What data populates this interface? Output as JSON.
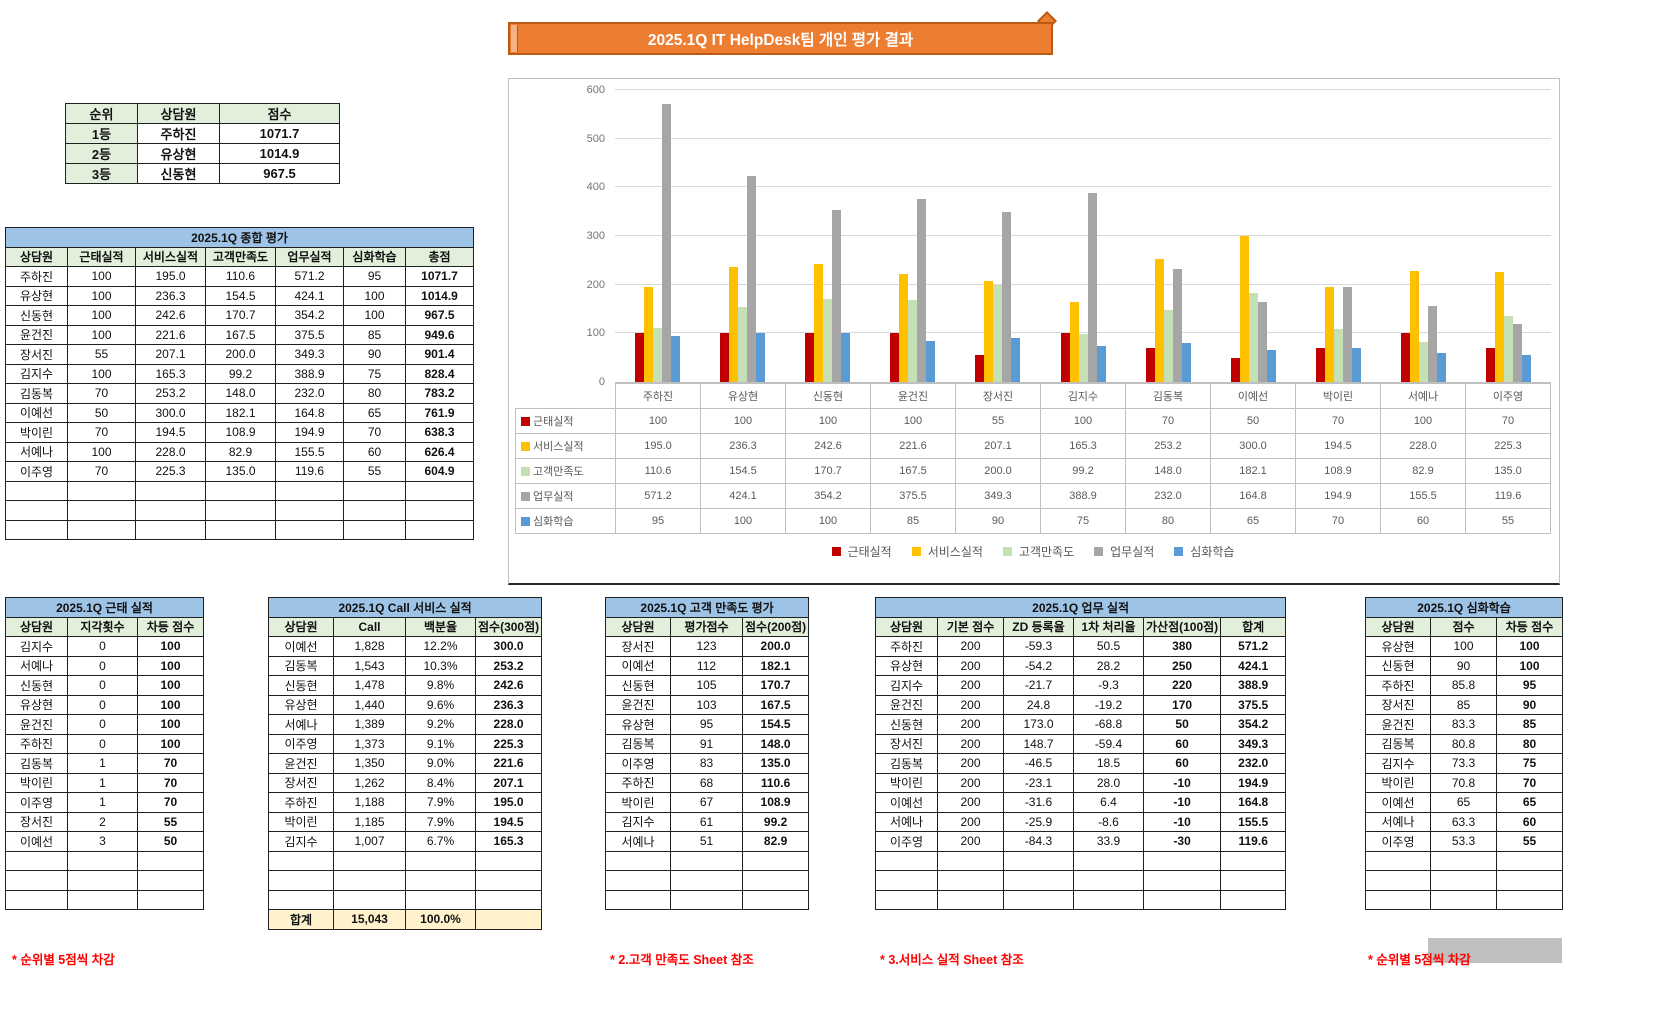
{
  "title_banner": "2025.1Q IT HelpDesk팀 개인 평가 결과",
  "rank_table": {
    "headers": [
      "순위",
      "상담원",
      "점수"
    ],
    "rows": [
      [
        "1등",
        "주하진",
        "1071.7"
      ],
      [
        "2등",
        "유상현",
        "1014.9"
      ],
      [
        "3등",
        "신동현",
        "967.5"
      ]
    ],
    "bold_all": true,
    "green_col": 0,
    "empty_rows": 0
  },
  "summary_table": {
    "title": "2025.1Q 종합 평가",
    "headers": [
      "상담원",
      "근태실적",
      "서비스실적",
      "고객만족도",
      "업무실적",
      "심화학습",
      "총점"
    ],
    "rows": [
      [
        "주하진",
        "100",
        "195.0",
        "110.6",
        "571.2",
        "95",
        "1071.7"
      ],
      [
        "유상현",
        "100",
        "236.3",
        "154.5",
        "424.1",
        "100",
        "1014.9"
      ],
      [
        "신동현",
        "100",
        "242.6",
        "170.7",
        "354.2",
        "100",
        "967.5"
      ],
      [
        "윤건진",
        "100",
        "221.6",
        "167.5",
        "375.5",
        "85",
        "949.6"
      ],
      [
        "장서진",
        "55",
        "207.1",
        "200.0",
        "349.3",
        "90",
        "901.4"
      ],
      [
        "김지수",
        "100",
        "165.3",
        "99.2",
        "388.9",
        "75",
        "828.4"
      ],
      [
        "김동복",
        "70",
        "253.2",
        "148.0",
        "232.0",
        "80",
        "783.2"
      ],
      [
        "이예선",
        "50",
        "300.0",
        "182.1",
        "164.8",
        "65",
        "761.9"
      ],
      [
        "박이린",
        "70",
        "194.5",
        "108.9",
        "194.9",
        "70",
        "638.3"
      ],
      [
        "서예나",
        "100",
        "228.0",
        "82.9",
        "155.5",
        "60",
        "626.4"
      ],
      [
        "이주영",
        "70",
        "225.3",
        "135.0",
        "119.6",
        "55",
        "604.9"
      ]
    ],
    "bold_cols": [
      6
    ],
    "empty_rows": 3
  },
  "chart_data": {
    "type": "bar",
    "title": "",
    "categories": [
      "주하진",
      "유상현",
      "신동현",
      "윤건진",
      "장서진",
      "김지수",
      "김동복",
      "이예선",
      "박이린",
      "서예나",
      "이주영"
    ],
    "series": [
      {
        "name": "근태실적",
        "color": "#C00000",
        "decimals": 0,
        "values": [
          100,
          100,
          100,
          100,
          55,
          100,
          70,
          50,
          70,
          100,
          70
        ]
      },
      {
        "name": "서비스실적",
        "color": "#FFC000",
        "decimals": 1,
        "values": [
          195.0,
          236.3,
          242.6,
          221.6,
          207.1,
          165.3,
          253.2,
          300.0,
          194.5,
          228.0,
          225.3
        ]
      },
      {
        "name": "고객만족도",
        "color": "#C5E0B4",
        "decimals": 1,
        "values": [
          110.6,
          154.5,
          170.7,
          167.5,
          200.0,
          99.2,
          148.0,
          182.1,
          108.9,
          82.9,
          135.0
        ]
      },
      {
        "name": "업무실적",
        "color": "#A6A6A6",
        "decimals": 1,
        "values": [
          571.2,
          424.1,
          354.2,
          375.5,
          349.3,
          388.9,
          232.0,
          164.8,
          194.9,
          155.5,
          119.6
        ]
      },
      {
        "name": "심화학습",
        "color": "#5B9BD5",
        "decimals": 0,
        "values": [
          95,
          100,
          100,
          85,
          90,
          75,
          80,
          65,
          70,
          60,
          55
        ]
      }
    ],
    "ylim": [
      0,
      600
    ],
    "yticks": [
      0,
      100,
      200,
      300,
      400,
      500,
      600
    ],
    "grid": true,
    "legend_position": "bottom",
    "data_table": true
  },
  "attendance_table": {
    "title": "2025.1Q 근태 실적",
    "headers": [
      "상담원",
      "지각횟수",
      "차등 점수"
    ],
    "rows": [
      [
        "김지수",
        "0",
        "100"
      ],
      [
        "서예나",
        "0",
        "100"
      ],
      [
        "신동현",
        "0",
        "100"
      ],
      [
        "유상현",
        "0",
        "100"
      ],
      [
        "윤건진",
        "0",
        "100"
      ],
      [
        "주하진",
        "0",
        "100"
      ],
      [
        "김동복",
        "1",
        "70"
      ],
      [
        "박이린",
        "1",
        "70"
      ],
      [
        "이주영",
        "1",
        "70"
      ],
      [
        "장서진",
        "2",
        "55"
      ],
      [
        "이예선",
        "3",
        "50"
      ]
    ],
    "bold_cols": [
      2
    ],
    "empty_rows": 3,
    "footnote": "* 순위별 5점씩 차감"
  },
  "call_table": {
    "title": "2025.1Q Call 서비스 실적",
    "headers": [
      "상담원",
      "Call",
      "백분율",
      "점수(300점)"
    ],
    "rows": [
      [
        "이예선",
        "1,828",
        "12.2%",
        "300.0"
      ],
      [
        "김동복",
        "1,543",
        "10.3%",
        "253.2"
      ],
      [
        "신동현",
        "1,478",
        "9.8%",
        "242.6"
      ],
      [
        "유상현",
        "1,440",
        "9.6%",
        "236.3"
      ],
      [
        "서예나",
        "1,389",
        "9.2%",
        "228.0"
      ],
      [
        "이주영",
        "1,373",
        "9.1%",
        "225.3"
      ],
      [
        "윤건진",
        "1,350",
        "9.0%",
        "221.6"
      ],
      [
        "장서진",
        "1,262",
        "8.4%",
        "207.1"
      ],
      [
        "주하진",
        "1,188",
        "7.9%",
        "195.0"
      ],
      [
        "박이린",
        "1,185",
        "7.9%",
        "194.5"
      ],
      [
        "김지수",
        "1,007",
        "6.7%",
        "165.3"
      ]
    ],
    "bold_cols": [
      3
    ],
    "empty_rows": 3,
    "total_row": [
      "합계",
      "15,043",
      "100.0%",
      ""
    ]
  },
  "csat_table": {
    "title": "2025.1Q 고객 만족도 평가",
    "headers": [
      "상담원",
      "평가점수",
      "점수(200점)"
    ],
    "rows": [
      [
        "장서진",
        "123",
        "200.0"
      ],
      [
        "이예선",
        "112",
        "182.1"
      ],
      [
        "신동현",
        "105",
        "170.7"
      ],
      [
        "윤건진",
        "103",
        "167.5"
      ],
      [
        "유상현",
        "95",
        "154.5"
      ],
      [
        "김동복",
        "91",
        "148.0"
      ],
      [
        "이주영",
        "83",
        "135.0"
      ],
      [
        "주하진",
        "68",
        "110.6"
      ],
      [
        "박이린",
        "67",
        "108.9"
      ],
      [
        "김지수",
        "61",
        "99.2"
      ],
      [
        "서예나",
        "51",
        "82.9"
      ]
    ],
    "bold_cols": [
      2
    ],
    "empty_rows": 3,
    "footnote": "* 2.고객 만족도 Sheet 참조"
  },
  "work_table": {
    "title": "2025.1Q 업무 실적",
    "headers": [
      "상담원",
      "기본 점수",
      "ZD 등록율",
      "1차 처리율",
      "가산점(100점)",
      "합계"
    ],
    "rows": [
      [
        "주하진",
        "200",
        "-59.3",
        "50.5",
        "380",
        "571.2"
      ],
      [
        "유상현",
        "200",
        "-54.2",
        "28.2",
        "250",
        "424.1"
      ],
      [
        "김지수",
        "200",
        "-21.7",
        "-9.3",
        "220",
        "388.9"
      ],
      [
        "윤건진",
        "200",
        "24.8",
        "-19.2",
        "170",
        "375.5"
      ],
      [
        "신동현",
        "200",
        "173.0",
        "-68.8",
        "50",
        "354.2"
      ],
      [
        "장서진",
        "200",
        "148.7",
        "-59.4",
        "60",
        "349.3"
      ],
      [
        "김동복",
        "200",
        "-46.5",
        "18.5",
        "60",
        "232.0"
      ],
      [
        "박이린",
        "200",
        "-23.1",
        "28.0",
        "-10",
        "194.9"
      ],
      [
        "이예선",
        "200",
        "-31.6",
        "6.4",
        "-10",
        "164.8"
      ],
      [
        "서예나",
        "200",
        "-25.9",
        "-8.6",
        "-10",
        "155.5"
      ],
      [
        "이주영",
        "200",
        "-84.3",
        "33.9",
        "-30",
        "119.6"
      ]
    ],
    "bold_cols": [
      4,
      5
    ],
    "red_neg_col": 4,
    "empty_rows": 3,
    "footnote": "* 3.서비스 실적 Sheet 참조"
  },
  "deep_table": {
    "title": "2025.1Q 심화학습",
    "headers": [
      "상담원",
      "점수",
      "차등 점수"
    ],
    "rows": [
      [
        "유상현",
        "100",
        "100"
      ],
      [
        "신동현",
        "90",
        "100"
      ],
      [
        "주하진",
        "85.8",
        "95"
      ],
      [
        "장서진",
        "85",
        "90"
      ],
      [
        "윤건진",
        "83.3",
        "85"
      ],
      [
        "김동복",
        "80.8",
        "80"
      ],
      [
        "김지수",
        "73.3",
        "75"
      ],
      [
        "박이린",
        "70.8",
        "70"
      ],
      [
        "이예선",
        "65",
        "65"
      ],
      [
        "서예나",
        "63.3",
        "60"
      ],
      [
        "이주영",
        "53.3",
        "55"
      ]
    ],
    "bold_cols": [
      2
    ],
    "empty_rows": 3,
    "footnote": "* 순위별 5점씩 차감"
  }
}
